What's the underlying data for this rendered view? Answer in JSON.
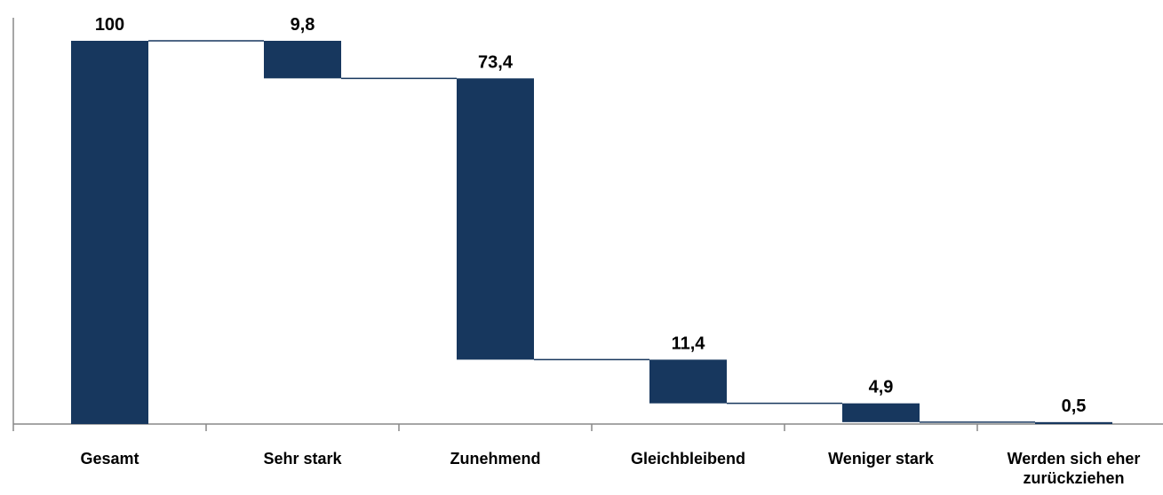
{
  "chart_data": {
    "type": "waterfall",
    "categories": [
      "Gesamt",
      "Sehr stark",
      "Zunehmend",
      "Gleichbleibend",
      "Weniger stark",
      "Werden sich eher zurückziehen"
    ],
    "values": [
      100,
      9.8,
      73.4,
      11.4,
      4.9,
      0.5
    ],
    "value_labels": [
      "100",
      "9,8",
      "73,4",
      "11,4",
      "4,9",
      "0,5"
    ],
    "color": "#17375e",
    "ylim": [
      0,
      105
    ]
  }
}
